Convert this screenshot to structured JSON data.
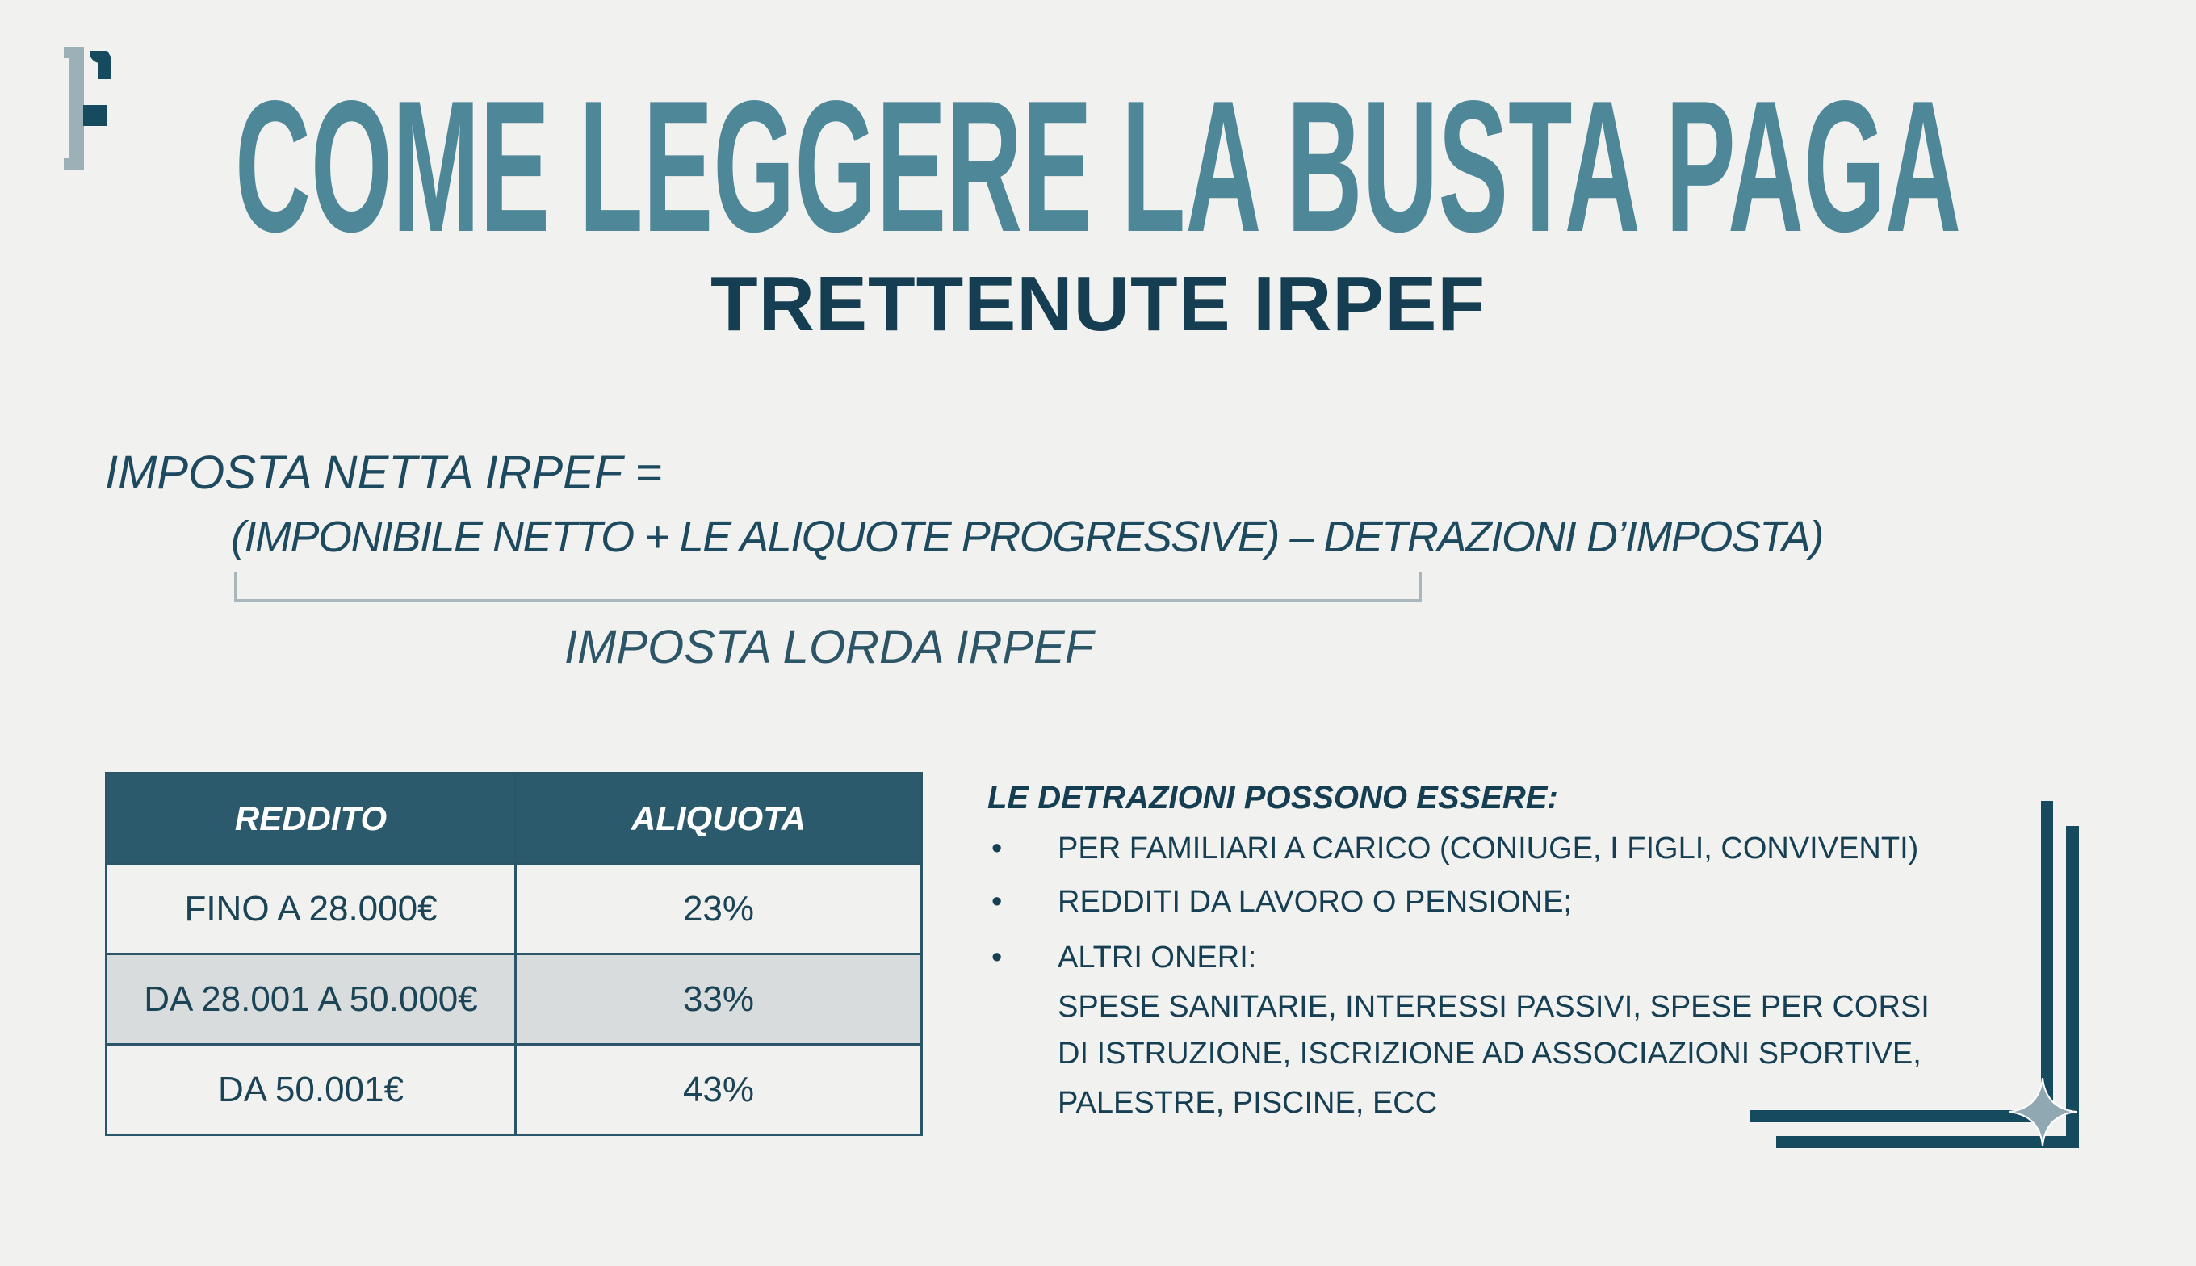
{
  "logo": {
    "letter": "F"
  },
  "title": "COME LEGGERE LA BUSTA PAGA",
  "subtitle": "TRETTENUTE IRPEF",
  "formula": {
    "line1": "IMPOSTA NETTA IRPEF =",
    "line2": "(IMPONIBILE NETTO + LE ALIQUOTE PROGRESSIVE) – DETRAZIONI D’IMPOSTA)",
    "brace_label": "IMPOSTA LORDA IRPEF"
  },
  "table": {
    "headers": [
      "REDDITO",
      "ALIQUOTA"
    ],
    "rows": [
      [
        "FINO A 28.000€",
        "23%"
      ],
      [
        "DA 28.001 A 50.000€",
        "33%"
      ],
      [
        "DA 50.001€",
        "43%"
      ]
    ]
  },
  "deductions": {
    "title": "LE DETRAZIONI POSSONO ESSERE:",
    "bullet": "•",
    "items": [
      "PER FAMILIARI A CARICO (CONIUGE, I FIGLI, CONVIVENTI)",
      "REDDITI DA LAVORO O PENSIONE;",
      "ALTRI ONERI:"
    ],
    "details": [
      "SPESE SANITARIE, INTERESSI PASSIVI, SPESE PER CORSI",
      "DI ISTRUZIONE, ISCRIZIONE AD ASSOCIAZIONI SPORTIVE,",
      "PALESTRE, PISCINE, ECC"
    ]
  },
  "colors": {
    "title": "#4e8898",
    "dark": "#154a5f",
    "header_bg": "#2c5a6d",
    "alt_row": "#d9dcdc",
    "background": "#f1f1ef"
  }
}
